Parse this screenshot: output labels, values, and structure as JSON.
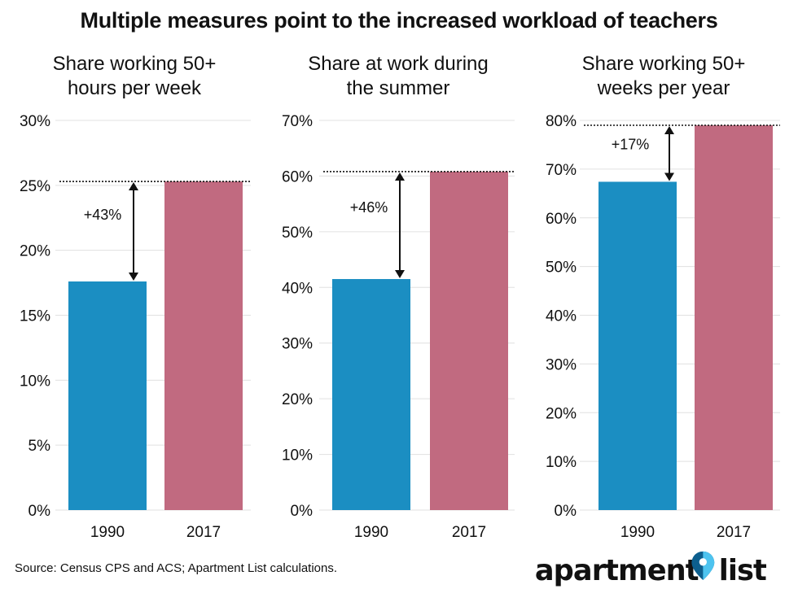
{
  "title": "Multiple measures point to the increased workload of teachers",
  "source": "Source: Census CPS and ACS; Apartment List calculations.",
  "logo": {
    "left": "apartment",
    "right": "list",
    "icon": "map-pin-icon"
  },
  "colors": {
    "bar_1990": "#1b8ec2",
    "bar_2017": "#c16a80",
    "grid": "#e0e0e0",
    "pin_dark": "#0d5f8e",
    "pin_light": "#4dc3ef"
  },
  "chart_data": [
    {
      "type": "bar",
      "title": [
        "Share working 50+",
        "hours per week"
      ],
      "categories": [
        "1990",
        "2017"
      ],
      "values": [
        17.6,
        25.3
      ],
      "ylim": [
        0,
        30
      ],
      "yticks": [
        0,
        5,
        10,
        15,
        20,
        25,
        30
      ],
      "tick_labels": [
        "0%",
        "5%",
        "10%",
        "15%",
        "20%",
        "25%",
        "30%"
      ],
      "annotation": "+43%",
      "reference_line": "dotted at 2017 value",
      "grid": true
    },
    {
      "type": "bar",
      "title": [
        "Share at work during",
        "the summer"
      ],
      "categories": [
        "1990",
        "2017"
      ],
      "values": [
        41.5,
        60.8
      ],
      "ylim": [
        0,
        70
      ],
      "yticks": [
        0,
        10,
        20,
        30,
        40,
        50,
        60,
        70
      ],
      "tick_labels": [
        "0%",
        "10%",
        "20%",
        "30%",
        "40%",
        "50%",
        "60%",
        "70%"
      ],
      "annotation": "+46%",
      "reference_line": "dotted at 2017 value",
      "grid": true
    },
    {
      "type": "bar",
      "title": [
        "Share working 50+",
        "weeks per year"
      ],
      "categories": [
        "1990",
        "2017"
      ],
      "values": [
        67.4,
        79.0
      ],
      "ylim": [
        0,
        80
      ],
      "yticks": [
        0,
        10,
        20,
        30,
        40,
        50,
        60,
        70,
        80
      ],
      "tick_labels": [
        "0%",
        "10%",
        "20%",
        "30%",
        "40%",
        "50%",
        "60%",
        "70%",
        "80%"
      ],
      "annotation": "+17%",
      "reference_line": "dotted at 2017 value",
      "grid": true
    }
  ]
}
